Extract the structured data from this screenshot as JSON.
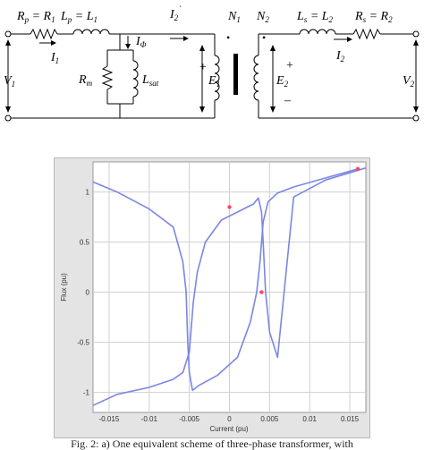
{
  "circuit": {
    "left_labels": {
      "rp": "R_p = R_1",
      "lp": "L_p = L_1",
      "i1": "I_1",
      "v1": "V_1"
    },
    "core": {
      "i2_prime": "I_2`",
      "i_phi": "I_Φ",
      "rm": "R_m",
      "lsat": "L_sat",
      "plus_left": "+",
      "e1": "E_1",
      "n1": "N_1",
      "n2": "N_2",
      "dot": "•",
      "e2": "E_2",
      "plus_right": "+",
      "minus_right": "–"
    },
    "right_labels": {
      "ls": "L_s = L_2",
      "rs": "R_s = R_2",
      "i2": "I_2",
      "v2": "V_2"
    }
  },
  "chart_data": {
    "type": "line",
    "title": "",
    "xlabel": "Current (pu)",
    "ylabel": "Flux (pu)",
    "xlim": [
      -0.017,
      0.017
    ],
    "ylim": [
      -1.2,
      1.3
    ],
    "xticks": [
      -0.015,
      -0.01,
      -0.005,
      0,
      0.005,
      0.01,
      0.015
    ],
    "xtick_labels": [
      "-0.015",
      "-0.01",
      "-0.005",
      "0",
      "0.005",
      "0.01",
      "0.015"
    ],
    "yticks": [
      -1,
      -0.5,
      0,
      0.5,
      1
    ],
    "ytick_labels": [
      "-1",
      "-0.5",
      "0",
      "0.5",
      "1"
    ],
    "grid": true,
    "series": [
      {
        "color": "#7b86e3",
        "x": [
          0.016,
          0.012,
          0.008,
          0.006,
          0.0048,
          0.0042,
          0.0038,
          0.0034,
          0.0026,
          0.001,
          -0.0015,
          -0.0038,
          -0.0046,
          -0.005,
          -0.0052,
          -0.0054,
          -0.0058,
          -0.007,
          -0.01,
          -0.014,
          -0.017
        ],
        "y": [
          1.23,
          1.14,
          1.05,
          0.99,
          0.9,
          0.7,
          0.3,
          0.0,
          -0.3,
          -0.65,
          -0.83,
          -0.93,
          -0.98,
          -0.8,
          -0.5,
          0.0,
          0.3,
          0.65,
          0.83,
          1.0,
          1.1
        ]
      },
      {
        "color": "#7b86e3",
        "x": [
          -0.017,
          -0.014,
          -0.01,
          -0.007,
          -0.0058,
          -0.005,
          -0.0045,
          -0.004,
          -0.003,
          -0.001,
          0.001,
          0.003,
          0.0036,
          0.004,
          0.0042,
          0.0045,
          0.005,
          0.006,
          0.008,
          0.012,
          0.017
        ],
        "y": [
          -1.13,
          -1.02,
          -0.95,
          -0.87,
          -0.8,
          -0.6,
          -0.1,
          0.2,
          0.5,
          0.72,
          0.8,
          0.88,
          0.94,
          0.8,
          0.5,
          0.0,
          -0.4,
          -0.65,
          0.95,
          1.12,
          1.24
        ]
      }
    ],
    "markers": [
      {
        "x": 0.0,
        "y": 0.85,
        "color": "#ff4466"
      },
      {
        "x": 0.004,
        "y": 0.0,
        "color": "#ff4466"
      },
      {
        "x": 0.016,
        "y": 1.23,
        "color": "#ff4466"
      }
    ]
  },
  "caption": "Fig. 2: a) One equivalent scheme of three-phase transformer, with"
}
